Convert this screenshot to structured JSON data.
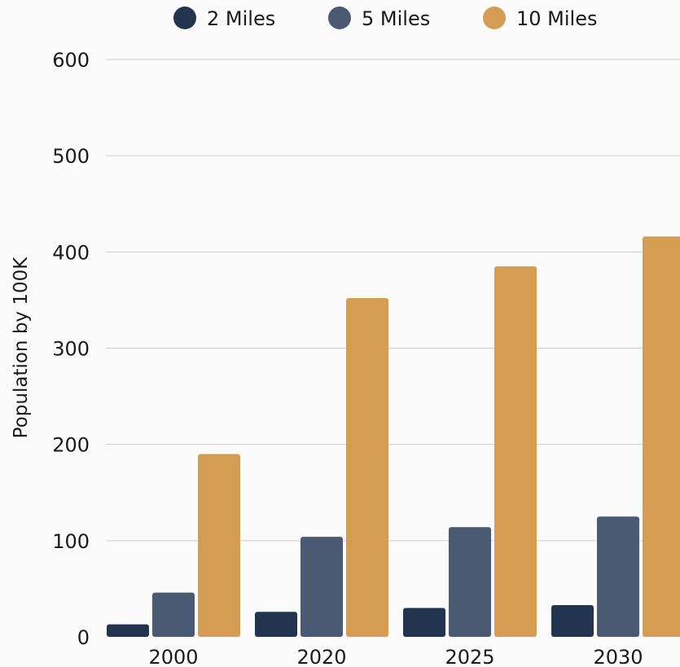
{
  "chart_data": {
    "type": "bar",
    "title": "",
    "xlabel": "",
    "ylabel": "Population by 100K",
    "ylim": [
      0,
      600
    ],
    "yticks": [
      0,
      100,
      200,
      300,
      400,
      500,
      600
    ],
    "grid": true,
    "legend_position": "top",
    "categories": [
      "2000",
      "2020",
      "2025",
      "2030"
    ],
    "series": [
      {
        "name": "2 Miles",
        "color": "#22344f",
        "values": [
          13,
          26,
          30,
          33
        ]
      },
      {
        "name": "5 Miles",
        "color": "#4a5a72",
        "values": [
          46,
          104,
          114,
          125
        ]
      },
      {
        "name": "10 Miles",
        "color": "#d49d52",
        "values": [
          190,
          352,
          385,
          416
        ]
      }
    ]
  }
}
